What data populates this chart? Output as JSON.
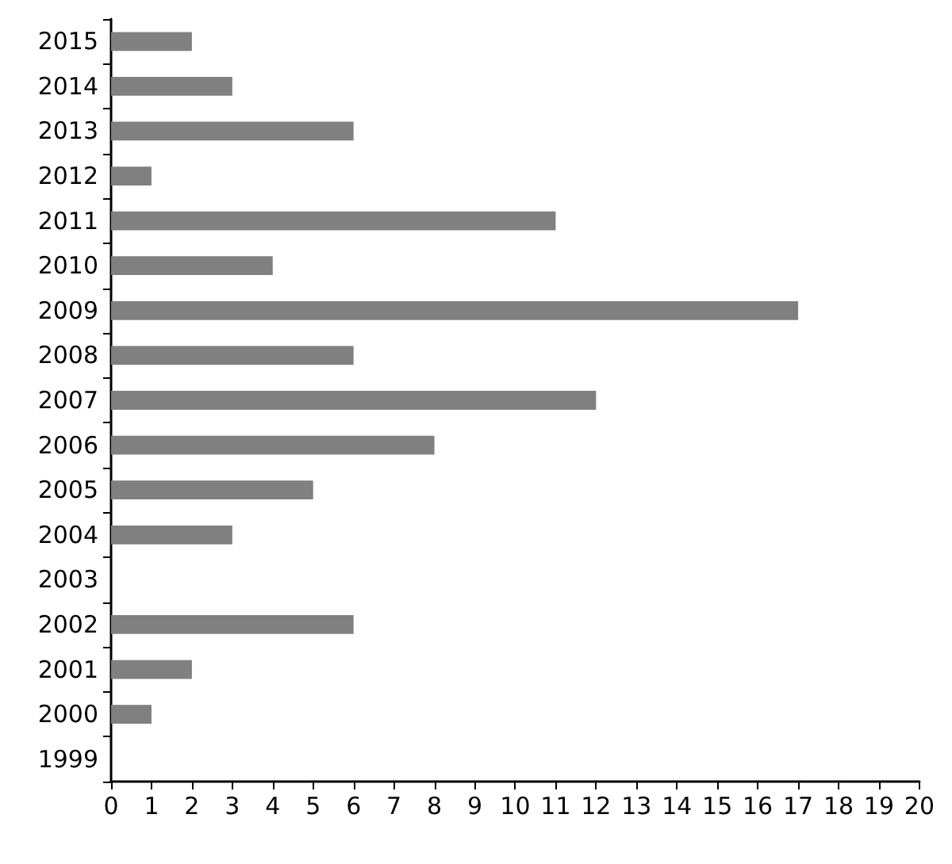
{
  "chart_data": {
    "type": "bar",
    "orientation": "horizontal",
    "categories": [
      "2015",
      "2014",
      "2013",
      "2012",
      "2011",
      "2010",
      "2009",
      "2008",
      "2007",
      "2006",
      "2005",
      "2004",
      "2003",
      "2002",
      "2001",
      "2000",
      "1999"
    ],
    "values": [
      2,
      3,
      6,
      1,
      11,
      4,
      17,
      6,
      12,
      8,
      5,
      3,
      0,
      6,
      2,
      1,
      0
    ],
    "color": "#808080",
    "xlim": [
      0,
      20
    ],
    "xticks": [
      0,
      1,
      2,
      3,
      4,
      5,
      6,
      7,
      8,
      9,
      10,
      11,
      12,
      13,
      14,
      15,
      16,
      17,
      18,
      19,
      20
    ],
    "grid": false
  }
}
